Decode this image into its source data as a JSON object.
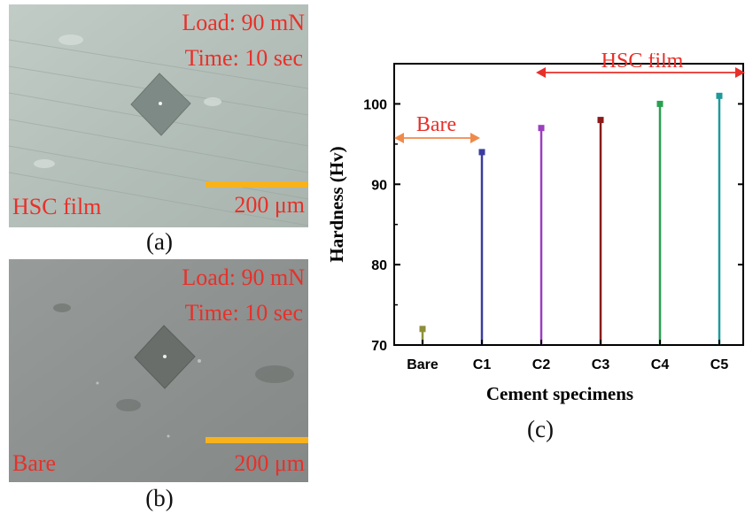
{
  "panel_a": {
    "load": "Load: 90 mN",
    "time": "Time: 10 sec",
    "film": "HSC film",
    "scale": "200 μm",
    "caption": "(a)"
  },
  "panel_b": {
    "load": "Load: 90 mN",
    "time": "Time: 10 sec",
    "film": "Bare",
    "scale": "200 μm",
    "caption": "(b)"
  },
  "panel_c": {
    "caption": "(c)"
  },
  "colors": {
    "micro_a_bg": "#b7c2bc",
    "micro_b_bg": "#8f9391",
    "label": "#e8302a",
    "scalebar": "#f7b21c",
    "arrow_bare": "#f08a4b",
    "arrow_hsc": "#e8302a"
  },
  "chart_data": {
    "type": "bar",
    "xlabel": "Cement specimens",
    "ylabel": "Hardness (Hv)",
    "categories": [
      "Bare",
      "C1",
      "C2",
      "C3",
      "C4",
      "C5"
    ],
    "values": [
      72,
      94,
      97,
      98,
      100,
      101
    ],
    "colors": [
      "#8e8e3a",
      "#3b3ba0",
      "#9b3fbf",
      "#8b1a1a",
      "#2aa050",
      "#1f9a9a"
    ],
    "ylim": [
      70,
      105
    ],
    "yticks": [
      70,
      80,
      90,
      100
    ],
    "grid": false,
    "annotations": [
      {
        "text": "Bare",
        "from": "Bare",
        "to": "C1"
      },
      {
        "text": "HSC film",
        "from": "C2",
        "to": "C5"
      }
    ]
  }
}
